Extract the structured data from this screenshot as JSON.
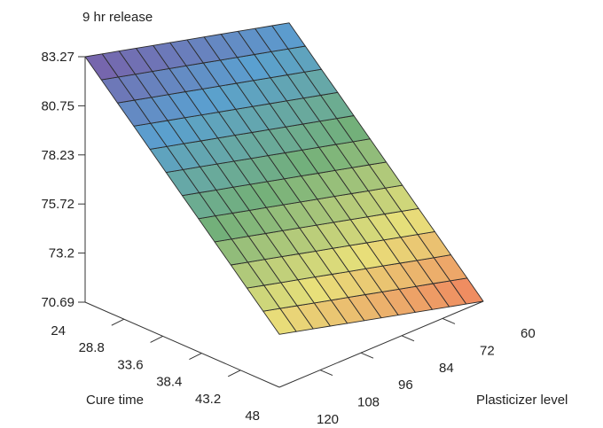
{
  "chart_data": {
    "type": "surface",
    "title": "9 hr release",
    "zlabel": "9 hr release",
    "xlabel": "Cure time",
    "ylabel": "Plasticizer level",
    "x_ticks": [
      "24",
      "28.8",
      "33.6",
      "38.4",
      "43.2",
      "48"
    ],
    "y_ticks": [
      "60",
      "72",
      "84",
      "96",
      "108",
      "120"
    ],
    "z_ticks": [
      "83.27",
      "80.75",
      "78.23",
      "75.72",
      "73.2",
      "70.69"
    ],
    "zlim": [
      70.69,
      83.27
    ],
    "xlim": [
      24,
      48
    ],
    "ylim": [
      60,
      120
    ],
    "grid": [
      12,
      12
    ],
    "corners": {
      "cure24_plast120": 83.27,
      "cure24_plast60": 80.6,
      "cure48_plast120": 73.4,
      "cure48_plast60": 70.69
    },
    "colors": {
      "high": "#7b5aa6",
      "mid_high": "#5aa0d0",
      "mid": "#73b07a",
      "mid_low": "#e8e07a",
      "low": "#f07c5c",
      "mesh": "#2b2b2b",
      "axis": "#333333"
    }
  }
}
